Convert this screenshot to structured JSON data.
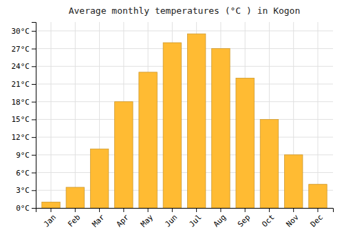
{
  "chart_data": {
    "type": "bar",
    "title": "Average monthly temperatures (°C ) in Kogon",
    "categories": [
      "Jan",
      "Feb",
      "Mar",
      "Apr",
      "May",
      "Jun",
      "Jul",
      "Aug",
      "Sep",
      "Oct",
      "Nov",
      "Dec"
    ],
    "values": [
      1,
      3.5,
      10,
      18,
      23,
      28,
      29.5,
      27,
      22,
      15,
      9,
      4
    ],
    "color": "#FFBB33",
    "ylim": [
      0,
      31.5
    ],
    "yticks": [
      {
        "value": 0,
        "label": "0°C"
      },
      {
        "value": 3,
        "label": "3°C"
      },
      {
        "value": 6,
        "label": "6°C"
      },
      {
        "value": 9,
        "label": "9°C"
      },
      {
        "value": 12,
        "label": "12°C"
      },
      {
        "value": 15,
        "label": "15°C"
      },
      {
        "value": 18,
        "label": "18°C"
      },
      {
        "value": 21,
        "label": "21°C"
      },
      {
        "value": 24,
        "label": "24°C"
      },
      {
        "value": 27,
        "label": "27°C"
      },
      {
        "value": 30,
        "label": "30°C"
      }
    ],
    "grid": true
  }
}
